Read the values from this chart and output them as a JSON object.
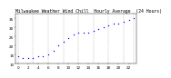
{
  "title": "Milwaukee Weather Wind Chill  Hourly Average  (24 Hours)",
  "title_fontsize": 3.5,
  "dot_color": "blue",
  "dot_size": 1.0,
  "x_values": [
    0,
    1,
    2,
    3,
    4,
    5,
    6,
    7,
    8,
    9,
    10,
    11,
    12,
    13,
    14,
    15,
    16,
    17,
    18,
    19,
    20,
    21,
    22,
    23
  ],
  "y_values": [
    14,
    13,
    13,
    13,
    14,
    14,
    15,
    17,
    20,
    22,
    24,
    26,
    27,
    27,
    27,
    28,
    29,
    30,
    31,
    32,
    32,
    33,
    34,
    35
  ],
  "ylim": [
    10,
    38
  ],
  "xlim": [
    -0.5,
    23.5
  ],
  "yticks": [
    10,
    15,
    20,
    25,
    30,
    35
  ],
  "grid_color": "#aaaaaa",
  "bg_color": "#ffffff",
  "tick_fontsize": 3.0,
  "vgrid_hours": [
    0,
    3,
    6,
    9,
    12,
    15,
    18,
    21,
    23
  ]
}
